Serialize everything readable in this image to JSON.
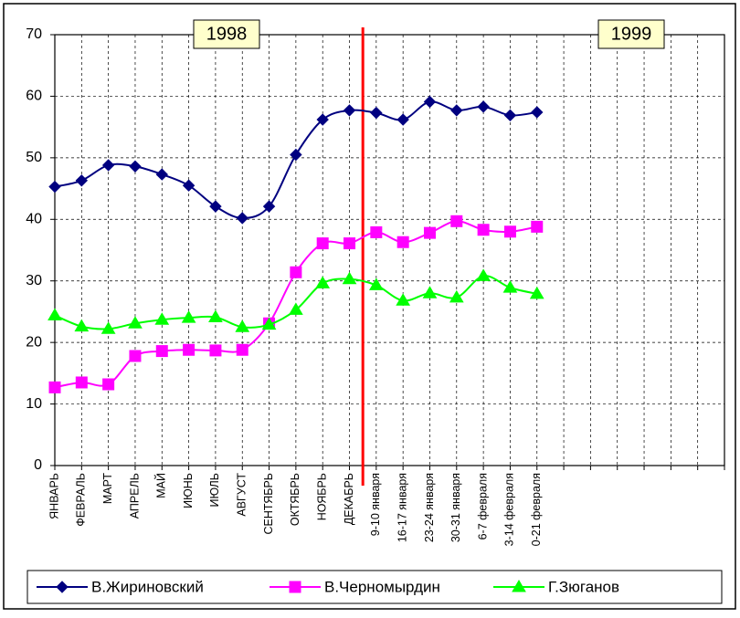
{
  "chart_data": {
    "type": "line",
    "annotations": [
      "1998",
      "1999"
    ],
    "categories": [
      "ЯНВАРЬ",
      "ФЕВРАЛЬ",
      "МАРТ",
      "АПРЕЛЬ",
      "МАЙ",
      "ИЮНЬ",
      "ИЮЛЬ",
      "АВГУСТ",
      "СЕНТЯБРЬ",
      "ОКТЯБРЬ",
      "НОЯБРЬ",
      "ДЕКАБРЬ",
      "9-10 января",
      "16-17 января",
      "23-24 января",
      "30-31 января",
      "6-7 февраля",
      "3-14 февраля",
      "0-21 февраля",
      null,
      null,
      null,
      null,
      null,
      null,
      null
    ],
    "series": [
      {
        "name": "В.Жириновский",
        "color": "#000080",
        "marker": "diamond",
        "values": [
          45.3,
          46.3,
          48.8,
          48.6,
          47.3,
          45.5,
          42.1,
          40.2,
          42.1,
          50.5,
          56.2,
          57.7,
          57.3,
          56.2,
          59.1,
          57.7,
          58.3,
          56.9,
          57.4,
          null,
          null,
          null,
          null,
          null,
          null,
          null
        ]
      },
      {
        "name": "В.Черномырдин",
        "color": "#ff00ff",
        "marker": "square",
        "values": [
          12.7,
          13.5,
          13.2,
          17.8,
          18.6,
          18.8,
          18.7,
          18.8,
          23.1,
          31.4,
          36.1,
          36.1,
          37.9,
          36.3,
          37.8,
          39.7,
          38.3,
          38.0,
          38.8,
          null,
          null,
          null,
          null,
          null,
          null,
          null
        ]
      },
      {
        "name": "Г.Зюганов",
        "color": "#00ff00",
        "marker": "triangle",
        "values": [
          24.4,
          22.6,
          22.2,
          23.1,
          23.7,
          24.0,
          24.1,
          22.5,
          22.9,
          25.3,
          29.6,
          30.3,
          29.3,
          26.8,
          28.0,
          27.3,
          30.8,
          28.9,
          27.9,
          null,
          null,
          null,
          null,
          null,
          null,
          null
        ]
      }
    ],
    "ylim": [
      0,
      70
    ],
    "yticks": [
      0,
      10,
      20,
      30,
      40,
      50,
      60,
      70
    ],
    "grid": true,
    "smooth": true,
    "legend": "bottom"
  }
}
